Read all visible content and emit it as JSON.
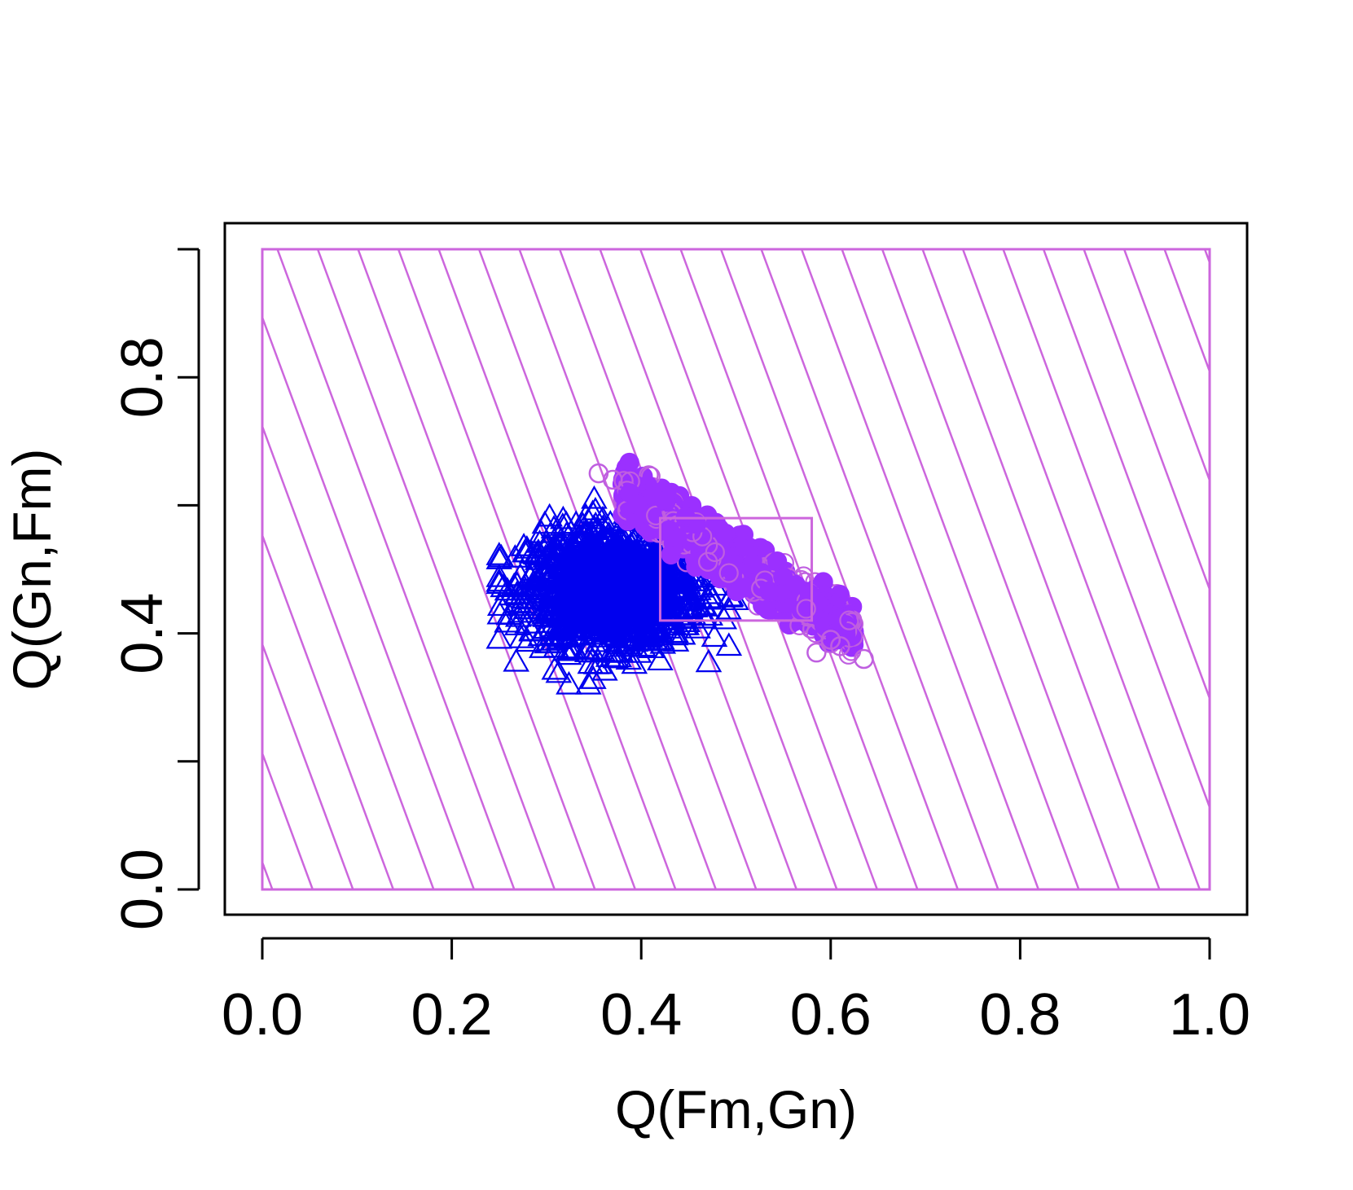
{
  "chart_data": {
    "type": "scatter",
    "title": "",
    "xlabel": "Q(Fm,Gn)",
    "ylabel": "Q(Gn,Fm)",
    "xlim": [
      0.0,
      1.0
    ],
    "ylim": [
      0.0,
      1.0
    ],
    "xticks": [
      0.0,
      0.2,
      0.4,
      0.6,
      0.8,
      1.0
    ],
    "xtick_labels": [
      "0.0",
      "0.2",
      "0.4",
      "0.6",
      "0.8",
      "1.0"
    ],
    "yticks": [
      0.0,
      0.2,
      0.4,
      0.6,
      0.8,
      1.0
    ],
    "ytick_labels": [
      "0.0",
      "",
      "0.4",
      "",
      "0.8",
      ""
    ],
    "grid": false,
    "legend": "none",
    "background_region": {
      "x": [
        0.0,
        1.0
      ],
      "y": [
        0.0,
        1.0
      ],
      "fill": "diagonal-hatch",
      "color": "#cc66dd"
    },
    "highlight_box": {
      "x": [
        0.42,
        0.58
      ],
      "y": [
        0.42,
        0.58
      ],
      "color": "#cc66dd"
    },
    "series": [
      {
        "marker": "triangle",
        "color": "#0000ee",
        "cluster": {
          "x_range": [
            0.25,
            0.5
          ],
          "y_range": [
            0.32,
            0.61
          ],
          "center": [
            0.37,
            0.47
          ]
        }
      },
      {
        "marker": "circle",
        "color": "#9b30ff",
        "outline_color": "#bf5fe0",
        "cluster": {
          "x_range": [
            0.35,
            0.635
          ],
          "y_range": [
            0.37,
            0.65
          ],
          "trend": "negative"
        }
      }
    ]
  }
}
